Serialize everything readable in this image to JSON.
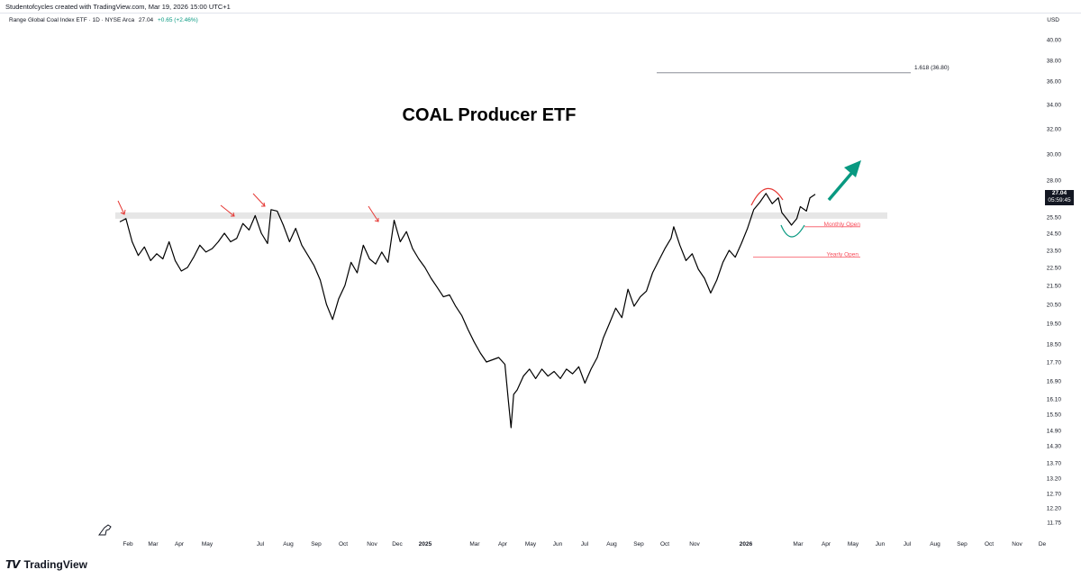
{
  "header": {
    "author_line": "Studentofcycles created with TradingView.com, Mar 19, 2026 15:00 UTC+1",
    "symbol_name": "Range Global Coal Index ETF · 1D · NYSE Arca",
    "last": "27.04",
    "change": "+0.65 (+2.46%)",
    "currency": "USD"
  },
  "price_tag": {
    "price": "27.04",
    "countdown": "05:59:45"
  },
  "footer": {
    "brand": "TradingView"
  },
  "chart_data": {
    "type": "line",
    "title": "COAL Producer ETF",
    "ylabel": "USD",
    "ylim": [
      11.3,
      41.5
    ],
    "y_ticks": [
      "40.00",
      "38.00",
      "36.00",
      "34.00",
      "32.00",
      "30.00",
      "28.00",
      "25.50",
      "24.50",
      "23.50",
      "22.50",
      "21.50",
      "20.50",
      "19.50",
      "18.50",
      "17.70",
      "16.90",
      "16.10",
      "15.50",
      "14.90",
      "14.30",
      "13.70",
      "13.20",
      "12.70",
      "12.20",
      "11.75"
    ],
    "x_ticks": [
      "Feb",
      "Mar",
      "Apr",
      "May",
      "Jul",
      "Aug",
      "Sep",
      "Oct",
      "Nov",
      "Dec",
      "2025",
      "Mar",
      "Apr",
      "May",
      "Jun",
      "Jul",
      "Aug",
      "Sep",
      "Oct",
      "Nov",
      "2026",
      "Mar",
      "Apr",
      "May",
      "Jun",
      "Jul",
      "Aug",
      "Sep",
      "Oct",
      "Nov",
      "De"
    ],
    "series": [
      {
        "name": "Range Global Coal Index ETF",
        "points": [
          [
            "2024-01-18",
            25.2
          ],
          [
            "2024-01-25",
            25.4
          ],
          [
            "2024-02-01",
            24.0
          ],
          [
            "2024-02-08",
            23.2
          ],
          [
            "2024-02-15",
            23.7
          ],
          [
            "2024-02-22",
            22.9
          ],
          [
            "2024-02-29",
            23.3
          ],
          [
            "2024-03-07",
            23.0
          ],
          [
            "2024-03-14",
            24.0
          ],
          [
            "2024-03-21",
            22.9
          ],
          [
            "2024-03-28",
            22.3
          ],
          [
            "2024-04-04",
            22.5
          ],
          [
            "2024-04-11",
            23.1
          ],
          [
            "2024-04-18",
            23.8
          ],
          [
            "2024-04-25",
            23.4
          ],
          [
            "2024-05-02",
            23.6
          ],
          [
            "2024-05-09",
            24.0
          ],
          [
            "2024-05-16",
            24.5
          ],
          [
            "2024-05-23",
            24.0
          ],
          [
            "2024-05-30",
            24.2
          ],
          [
            "2024-06-06",
            25.1
          ],
          [
            "2024-06-13",
            24.7
          ],
          [
            "2024-06-20",
            25.6
          ],
          [
            "2024-06-27",
            24.5
          ],
          [
            "2024-07-04",
            23.9
          ],
          [
            "2024-07-08",
            26.0
          ],
          [
            "2024-07-15",
            25.9
          ],
          [
            "2024-07-22",
            25.0
          ],
          [
            "2024-07-29",
            24.0
          ],
          [
            "2024-08-05",
            24.8
          ],
          [
            "2024-08-12",
            23.8
          ],
          [
            "2024-08-19",
            23.2
          ],
          [
            "2024-08-26",
            22.6
          ],
          [
            "2024-09-02",
            21.8
          ],
          [
            "2024-09-09",
            20.5
          ],
          [
            "2024-09-16",
            19.7
          ],
          [
            "2024-09-23",
            20.8
          ],
          [
            "2024-09-30",
            21.5
          ],
          [
            "2024-10-07",
            22.8
          ],
          [
            "2024-10-14",
            22.2
          ],
          [
            "2024-10-21",
            23.8
          ],
          [
            "2024-10-28",
            23.0
          ],
          [
            "2024-11-04",
            22.7
          ],
          [
            "2024-11-11",
            23.4
          ],
          [
            "2024-11-18",
            22.8
          ],
          [
            "2024-11-25",
            25.3
          ],
          [
            "2024-12-02",
            24.0
          ],
          [
            "2024-12-09",
            24.6
          ],
          [
            "2024-12-16",
            23.6
          ],
          [
            "2024-12-23",
            23.0
          ],
          [
            "2024-12-30",
            22.5
          ],
          [
            "2025-01-06",
            21.9
          ],
          [
            "2025-01-13",
            21.4
          ],
          [
            "2025-01-20",
            20.9
          ],
          [
            "2025-01-27",
            21.0
          ],
          [
            "2025-02-03",
            20.4
          ],
          [
            "2025-02-10",
            19.9
          ],
          [
            "2025-02-17",
            19.2
          ],
          [
            "2025-02-24",
            18.6
          ],
          [
            "2025-03-03",
            18.1
          ],
          [
            "2025-03-10",
            17.7
          ],
          [
            "2025-03-17",
            17.8
          ],
          [
            "2025-03-24",
            17.9
          ],
          [
            "2025-03-31",
            17.6
          ],
          [
            "2025-04-04",
            16.0
          ],
          [
            "2025-04-07",
            15.0
          ],
          [
            "2025-04-10",
            16.3
          ],
          [
            "2025-04-14",
            16.5
          ],
          [
            "2025-04-21",
            17.1
          ],
          [
            "2025-04-28",
            17.4
          ],
          [
            "2025-05-05",
            17.0
          ],
          [
            "2025-05-12",
            17.4
          ],
          [
            "2025-05-19",
            17.1
          ],
          [
            "2025-05-26",
            17.3
          ],
          [
            "2025-06-02",
            17.0
          ],
          [
            "2025-06-09",
            17.4
          ],
          [
            "2025-06-16",
            17.2
          ],
          [
            "2025-06-23",
            17.5
          ],
          [
            "2025-06-30",
            16.8
          ],
          [
            "2025-07-07",
            17.4
          ],
          [
            "2025-07-14",
            17.9
          ],
          [
            "2025-07-21",
            18.8
          ],
          [
            "2025-07-28",
            19.5
          ],
          [
            "2025-08-04",
            20.3
          ],
          [
            "2025-08-11",
            19.8
          ],
          [
            "2025-08-18",
            21.3
          ],
          [
            "2025-08-25",
            20.4
          ],
          [
            "2025-09-01",
            20.9
          ],
          [
            "2025-09-08",
            21.2
          ],
          [
            "2025-09-15",
            22.2
          ],
          [
            "2025-09-22",
            22.9
          ],
          [
            "2025-09-29",
            23.6
          ],
          [
            "2025-10-06",
            24.2
          ],
          [
            "2025-10-09",
            24.9
          ],
          [
            "2025-10-16",
            23.8
          ],
          [
            "2025-10-23",
            22.9
          ],
          [
            "2025-10-30",
            23.3
          ],
          [
            "2025-11-06",
            22.4
          ],
          [
            "2025-11-13",
            21.9
          ],
          [
            "2025-11-20",
            21.1
          ],
          [
            "2025-11-27",
            21.8
          ],
          [
            "2025-12-04",
            22.8
          ],
          [
            "2025-12-11",
            23.5
          ],
          [
            "2025-12-18",
            23.1
          ],
          [
            "2025-12-25",
            23.9
          ],
          [
            "2026-01-01",
            24.8
          ],
          [
            "2026-01-08",
            26.0
          ],
          [
            "2026-01-15",
            26.5
          ],
          [
            "2026-01-22",
            27.1
          ],
          [
            "2026-01-29",
            26.4
          ],
          [
            "2026-02-05",
            26.8
          ],
          [
            "2026-02-09",
            25.8
          ],
          [
            "2026-02-16",
            25.3
          ],
          [
            "2026-02-20",
            25.0
          ],
          [
            "2026-02-26",
            25.4
          ],
          [
            "2026-03-02",
            26.2
          ],
          [
            "2026-03-09",
            25.9
          ],
          [
            "2026-03-13",
            26.8
          ],
          [
            "2026-03-19",
            27.04
          ]
        ]
      }
    ],
    "levels": [
      {
        "label": "1.618 (36.80)",
        "value": 36.8
      },
      {
        "label": "Monthly Open",
        "value": 24.9
      },
      {
        "label": "Yearly Open",
        "value": 23.1
      }
    ],
    "resistance_zone": [
      25.45,
      25.75
    ],
    "annotations": [
      "red arrows marking repeated tops at resistance",
      "red arc over recent top",
      "teal arc under recent dip",
      "teal arrow pointing up"
    ]
  }
}
